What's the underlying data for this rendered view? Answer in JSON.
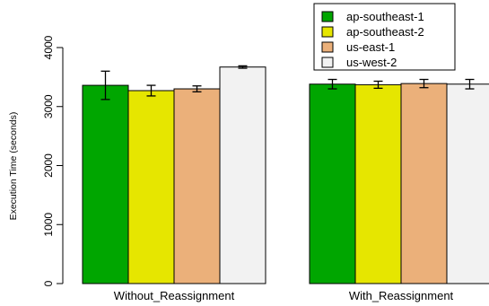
{
  "chart_data": {
    "type": "bar",
    "ylabel": "Execution Time (seconds)",
    "categories": [
      "Without_Reassignment",
      "With_Reassignment"
    ],
    "yticks": [
      0,
      1000,
      2000,
      3000,
      4000
    ],
    "ylim": [
      0,
      4000
    ],
    "legend_position": "top-right",
    "grid": false,
    "error_bars": true,
    "series": [
      {
        "name": "ap-southeast-1",
        "color": "#00a600",
        "values": [
          3360,
          3380
        ],
        "err": [
          240,
          80
        ]
      },
      {
        "name": "ap-southeast-2",
        "color": "#e6e600",
        "values": [
          3270,
          3370
        ],
        "err": [
          90,
          60
        ]
      },
      {
        "name": "us-east-1",
        "color": "#ebb07a",
        "values": [
          3300,
          3390
        ],
        "err": [
          50,
          70
        ]
      },
      {
        "name": "us-west-2",
        "color": "#f2f2f2",
        "values": [
          3670,
          3380
        ],
        "err": [
          20,
          80
        ]
      }
    ]
  }
}
